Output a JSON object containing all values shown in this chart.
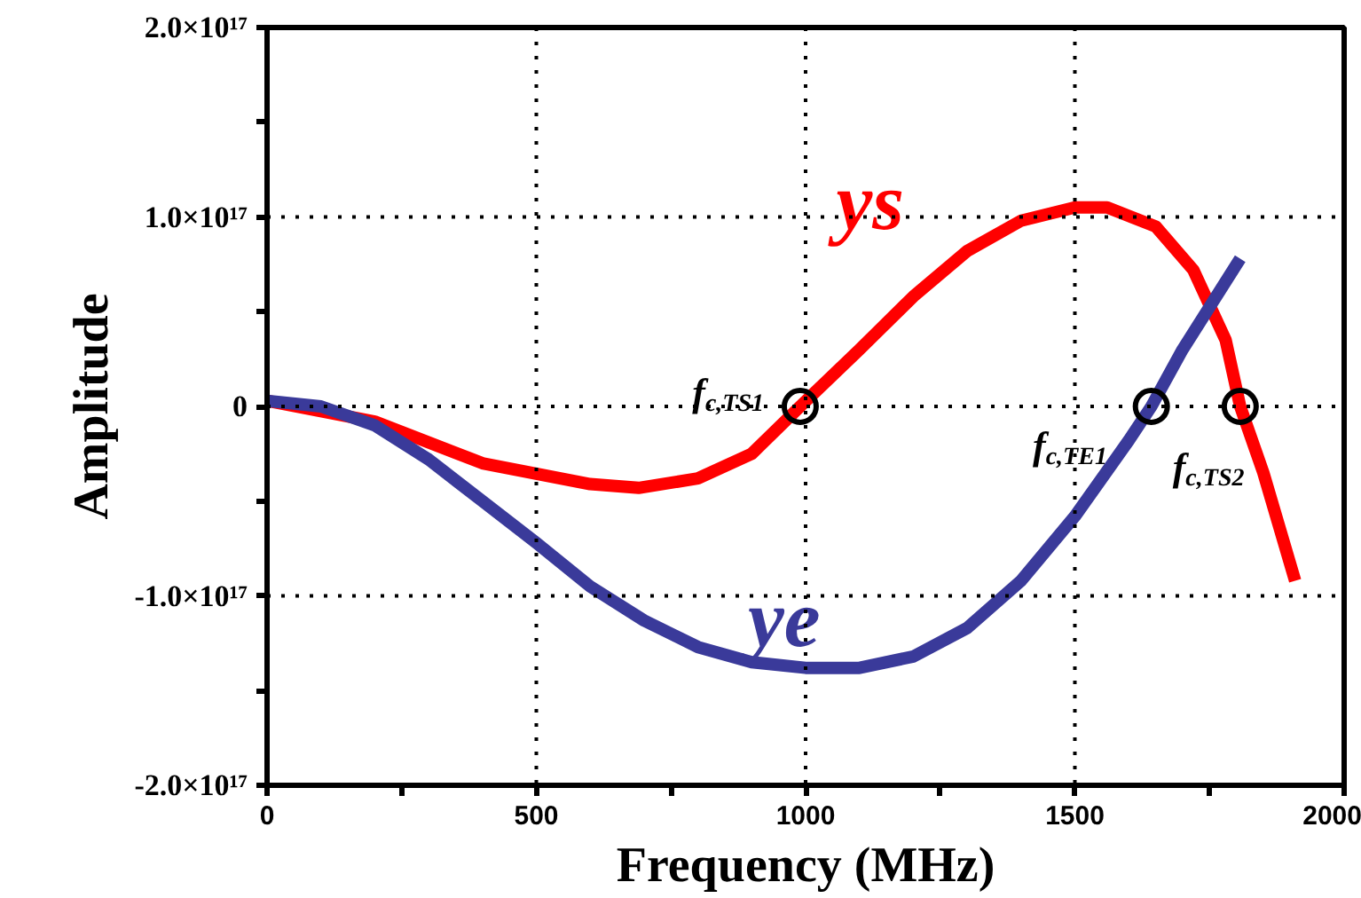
{
  "chart_data": {
    "type": "line",
    "xlabel": "Frequency (MHz)",
    "ylabel": "Amplitude",
    "xlim": [
      0,
      2000
    ],
    "ylim": [
      -2e+17,
      2e+17
    ],
    "xticks": [
      0,
      {
        "value": 250,
        "label": null
      },
      500,
      {
        "value": 750,
        "label": null
      },
      1000,
      {
        "value": 1250,
        "label": null
      },
      1500,
      {
        "value": 1750,
        "label": null
      },
      2000
    ],
    "yticks": [
      {
        "value": -2e+17,
        "label": "-2.0×10¹⁷"
      },
      {
        "value": -1.5e+17,
        "label": null
      },
      {
        "value": -1e+17,
        "label": "-1.0×10¹⁷"
      },
      {
        "value": -5e+16,
        "label": null
      },
      {
        "value": 0,
        "label": "0"
      },
      {
        "value": 5e+16,
        "label": null
      },
      {
        "value": 1e+17,
        "label": "1.0×10¹⁷"
      },
      {
        "value": 1.5e+17,
        "label": null
      },
      {
        "value": 2e+17,
        "label": "2.0×10¹⁷"
      }
    ],
    "grid": true,
    "line_style": "solid",
    "marker": "none",
    "series": [
      {
        "name": "ys",
        "color": "#ff0000",
        "x": [
          0,
          200,
          400,
          600,
          690,
          800,
          900,
          990,
          1100,
          1200,
          1300,
          1400,
          1500,
          1560,
          1650,
          1720,
          1780,
          1807,
          1850,
          1909
        ],
        "values": [
          3000000000000000.0,
          -8000000000000000.0,
          -3e+16,
          -4.1e+16,
          -4.3e+16,
          -3.8e+16,
          -2.5e+16,
          0,
          3e+16,
          5.8e+16,
          8.2e+16,
          9.8e+16,
          1.05e+17,
          1.05e+17,
          9.5e+16,
          7.2e+16,
          3.5e+16,
          0,
          -3.5e+16,
          -9.2e+16
        ]
      },
      {
        "name": "ye",
        "color": "#3a3a9a",
        "x": [
          0,
          100,
          200,
          300,
          400,
          500,
          600,
          700,
          800,
          900,
          1000,
          1100,
          1200,
          1300,
          1400,
          1500,
          1600,
          1642,
          1700,
          1807
        ],
        "values": [
          3000000000000000.0,
          0,
          -1e+16,
          -2.8e+16,
          -5e+16,
          -7.2e+16,
          -9.5e+16,
          -1.13e+17,
          -1.27e+17,
          -1.35e+17,
          -1.38e+17,
          -1.38e+17,
          -1.32e+17,
          -1.17e+17,
          -9.2e+16,
          -5.8e+16,
          -1.8e+16,
          0,
          3e+16,
          7.8e+16
        ]
      }
    ],
    "annotations": [
      {
        "text": "f$_{c,TS1}$",
        "x": 990,
        "y": 0
      },
      {
        "text": "f$_{c,TE1}$",
        "x": 1642,
        "y": 0
      },
      {
        "text": "f$_{c,TS2}$",
        "x": 1807,
        "y": 0
      }
    ]
  }
}
